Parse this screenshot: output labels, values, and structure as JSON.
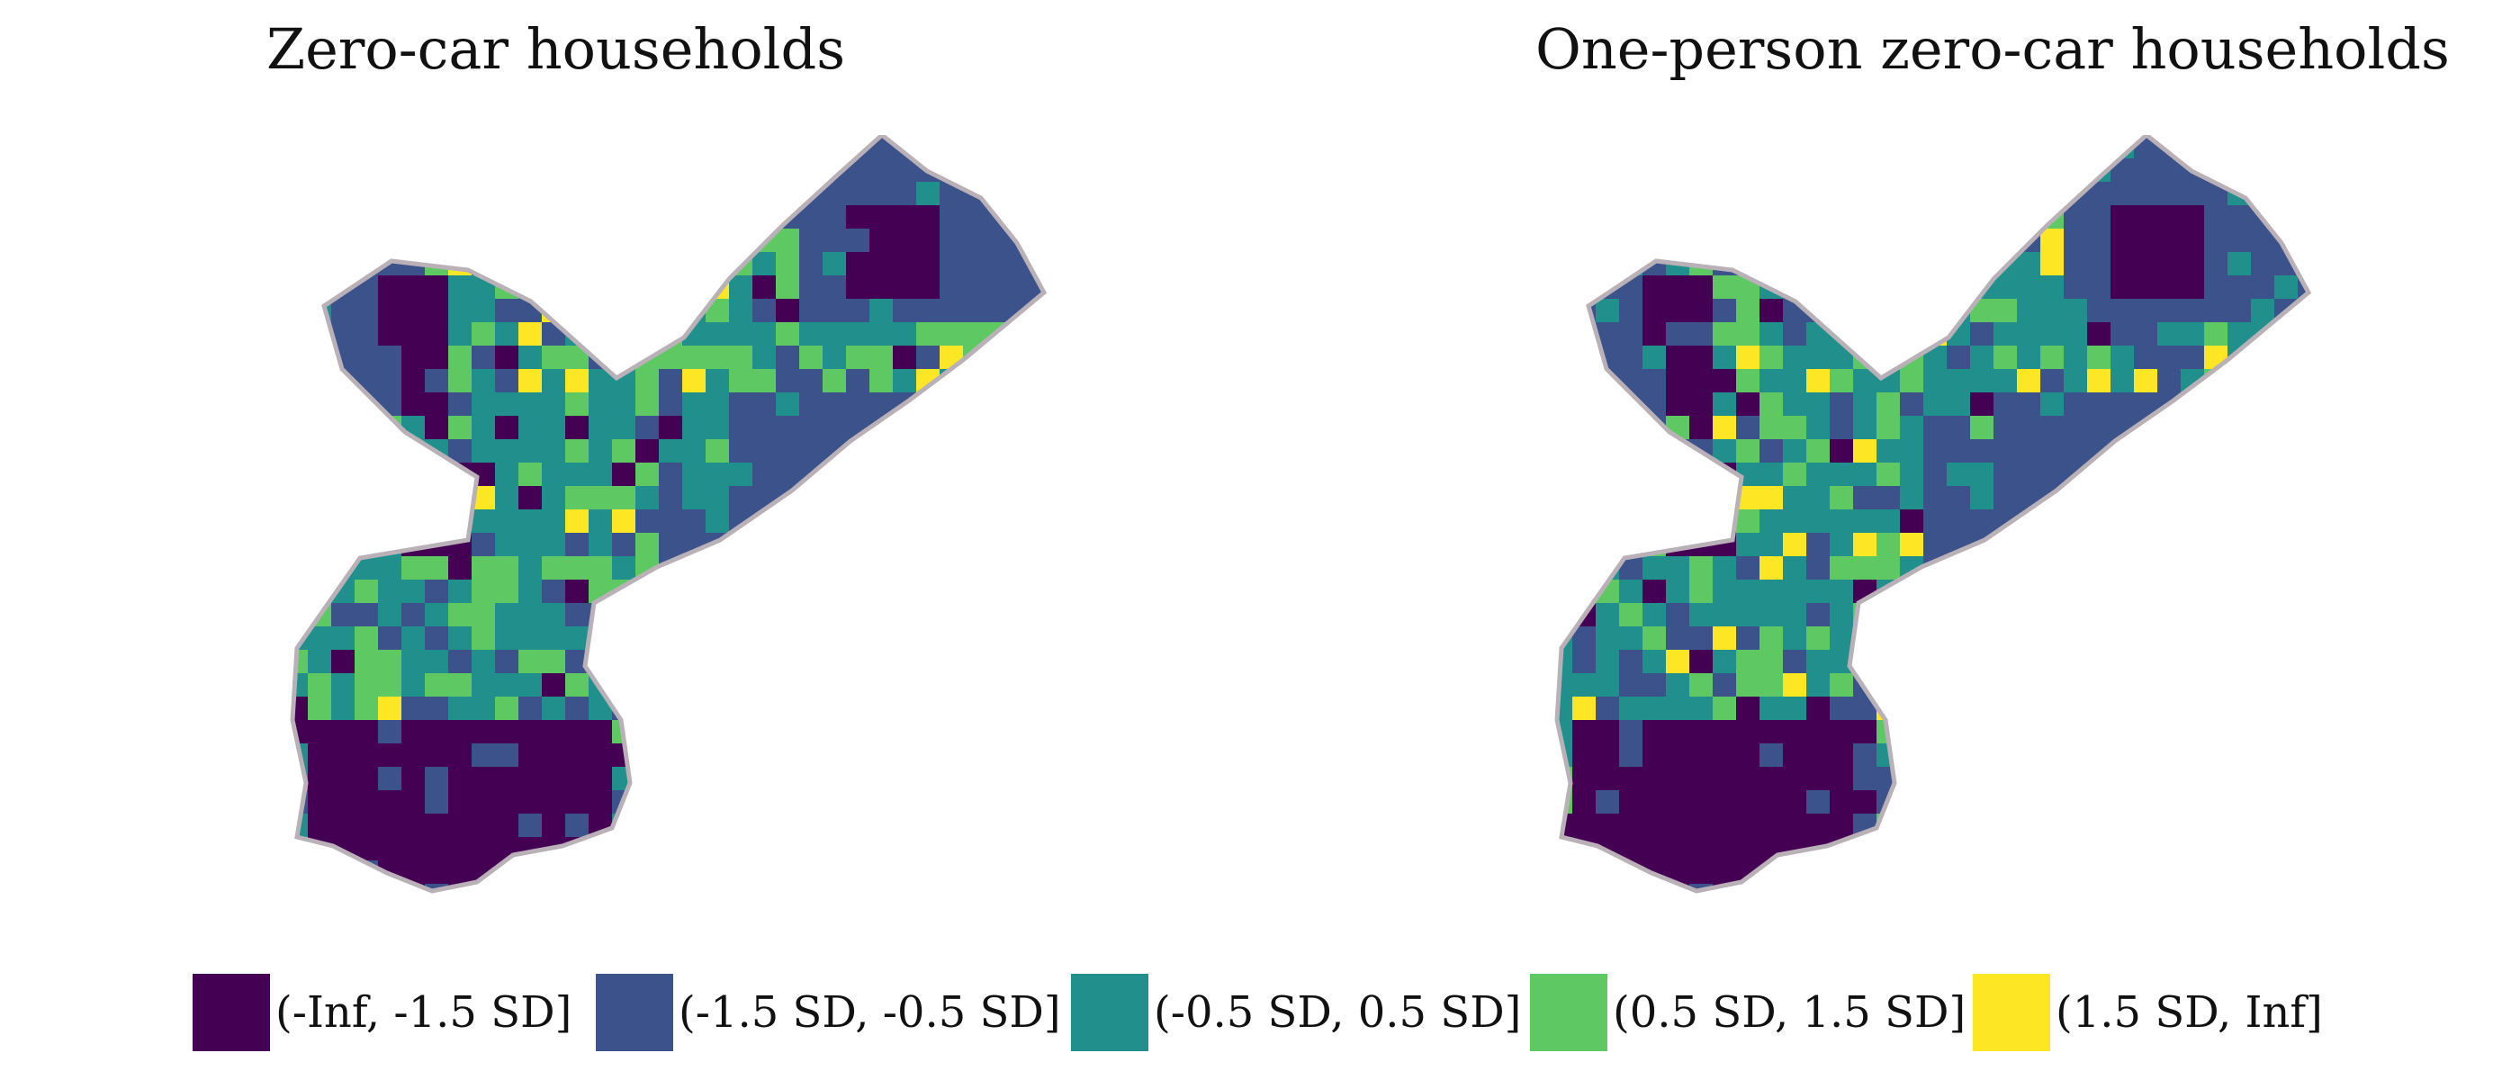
{
  "maps": [
    {
      "title": "Zero-car households",
      "colors": [
        "#440154",
        "#3b528b",
        "#21908c",
        "#5ec962",
        "#fde725"
      ],
      "seed": 1,
      "blueBias": 0.0
    },
    {
      "title": "One-person zero-car households",
      "colors": [
        "#440154",
        "#3b528b",
        "#21908c",
        "#5ec962",
        "#fde725"
      ],
      "seed": 7,
      "blueBias": 0.18
    }
  ],
  "legend": {
    "items": [
      {
        "label": "(-Inf, -1.5 SD]",
        "color": "#440154"
      },
      {
        "label": "(-1.5 SD, -0.5 SD]",
        "color": "#3b528b"
      },
      {
        "label": "(-0.5 SD, 0.5 SD]",
        "color": "#21908c"
      },
      {
        "label": "(0.5 SD, 1.5 SD]",
        "color": "#5ec962"
      },
      {
        "label": "(1.5 SD, Inf]",
        "color": "#fde725"
      }
    ]
  },
  "style": {
    "boundary_color": "#b9b0b8"
  }
}
